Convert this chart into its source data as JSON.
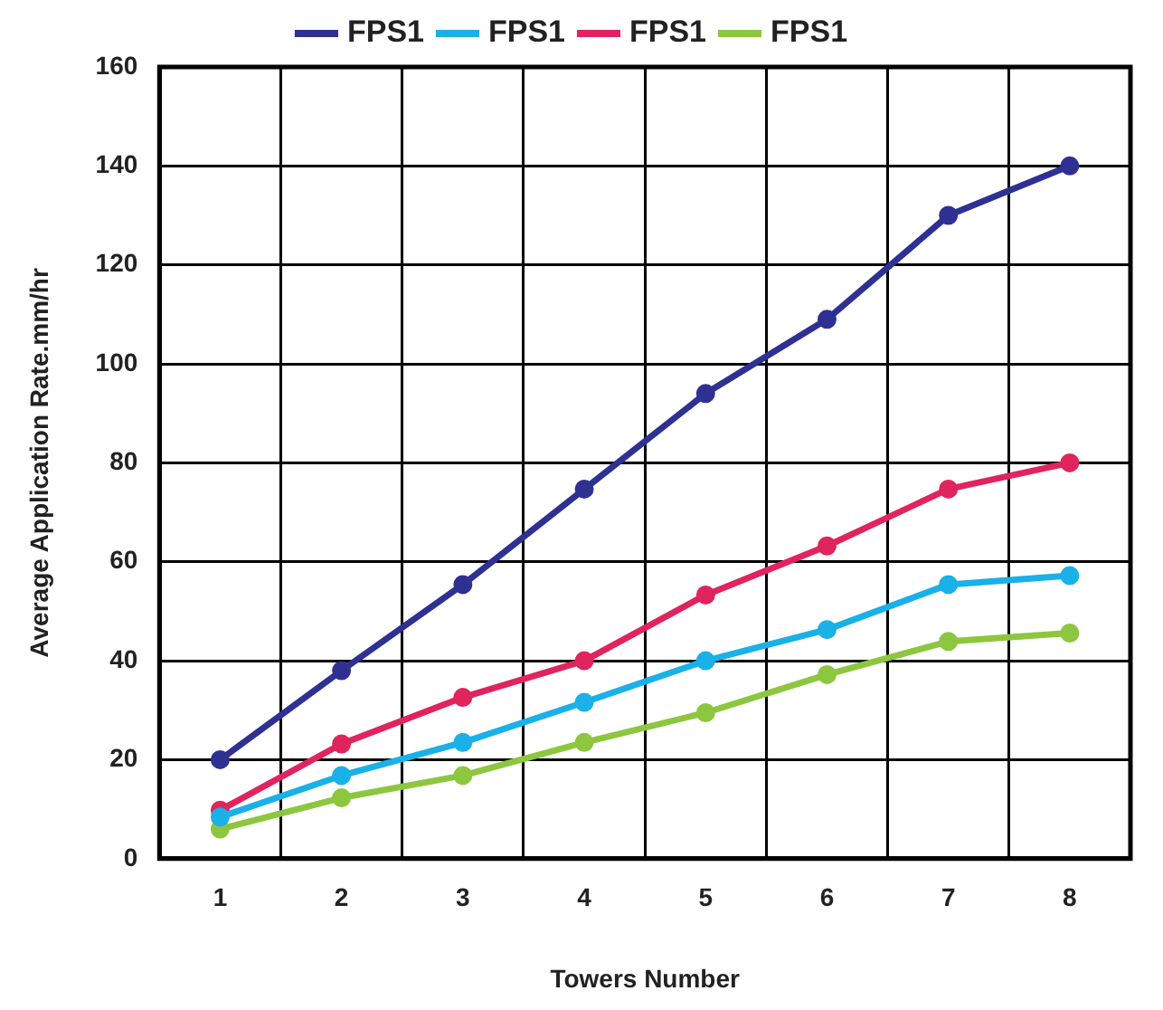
{
  "chart_data": {
    "type": "line",
    "xlabel": "Towers Number",
    "ylabel": "Average Application Rate.mm/hr",
    "categories": [
      "1",
      "2",
      "3",
      "4",
      "5",
      "6",
      "7",
      "8"
    ],
    "series": [
      {
        "name": "FPS1",
        "color": "#2e3192",
        "values": [
          20,
          38,
          55.4,
          74.7,
          94,
          109,
          130,
          140
        ]
      },
      {
        "name": "FPS1",
        "color": "#1ab0e8",
        "values": [
          8.4,
          16.8,
          23.5,
          31.6,
          40,
          46.3,
          55.4,
          57.2
        ]
      },
      {
        "name": "FPS1",
        "color": "#e0245e",
        "values": [
          9.8,
          23.2,
          32.6,
          40,
          53.3,
          63.2,
          74.7,
          80
        ]
      },
      {
        "name": "FPS1",
        "color": "#8dc63f",
        "values": [
          6,
          12.3,
          16.8,
          23.5,
          29.5,
          37.2,
          43.9,
          45.6
        ]
      }
    ],
    "ylim": [
      0,
      160
    ],
    "yticks": [
      0,
      20,
      40,
      60,
      80,
      100,
      120,
      140,
      160
    ],
    "grid": true,
    "legend": "top",
    "marker": "circle",
    "line_style": "solid"
  }
}
